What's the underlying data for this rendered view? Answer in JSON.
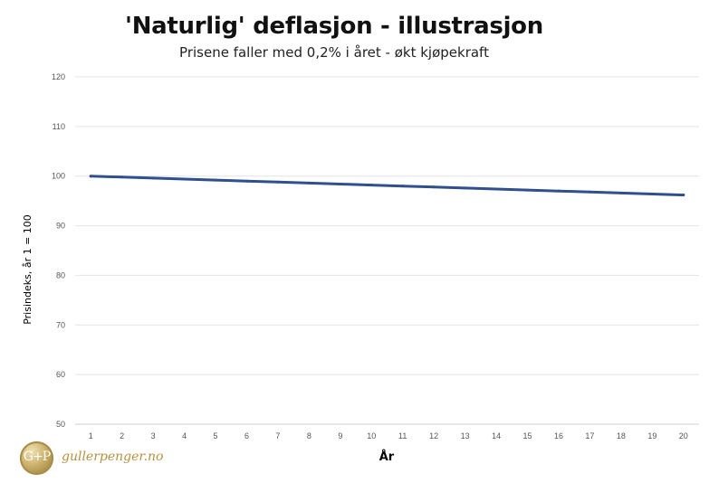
{
  "chart_data": {
    "type": "line",
    "title": "'Naturlig' deflasjon - illustrasjon",
    "subtitle": "Prisene faller med 0,2% i året - økt kjøpekraft",
    "xlabel": "År",
    "ylabel": "Prisindeks, år 1 = 100",
    "x": [
      1,
      2,
      3,
      4,
      5,
      6,
      7,
      8,
      9,
      10,
      11,
      12,
      13,
      14,
      15,
      16,
      17,
      18,
      19,
      20
    ],
    "series": [
      {
        "values": [
          100.0,
          99.8,
          99.6,
          99.4,
          99.2,
          99.0,
          98.8,
          98.6,
          98.4,
          98.2,
          98.0,
          97.8,
          97.6,
          97.4,
          97.2,
          97.0,
          96.8,
          96.6,
          96.4,
          96.2
        ],
        "color": "#2f4f8f"
      }
    ],
    "ylim": [
      50,
      120
    ],
    "yticks": [
      50,
      60,
      70,
      80,
      90,
      100,
      110,
      120
    ],
    "grid": true,
    "legend": "none"
  },
  "branding": {
    "logo_text": "G+P",
    "site": "gullerpenger.no"
  }
}
